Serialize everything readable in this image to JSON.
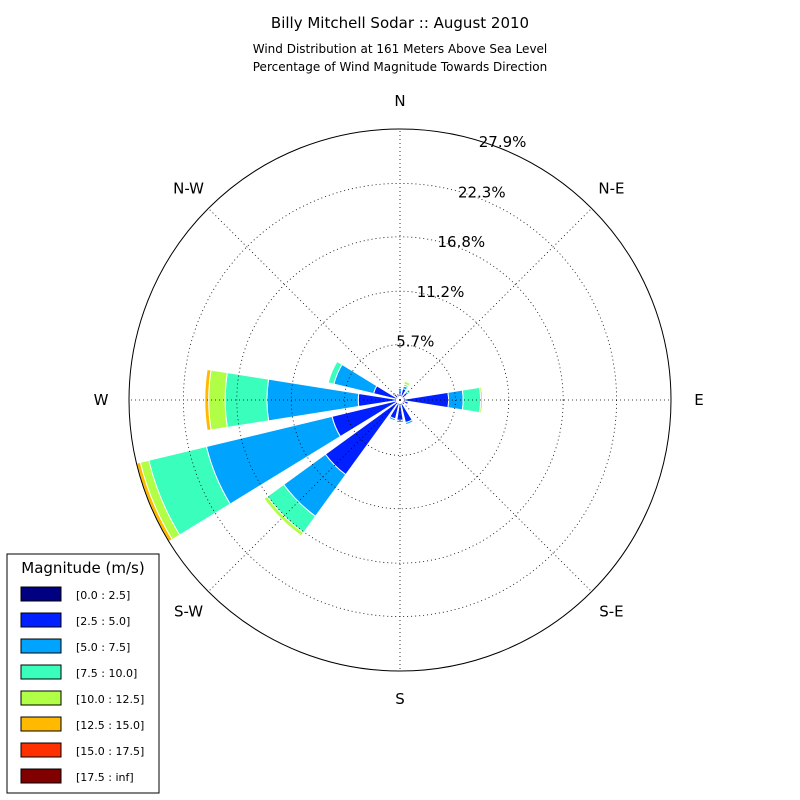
{
  "chart_data": {
    "type": "windrose",
    "title": "Billy Mitchell Sodar :: August 2010",
    "subtitle_lines": [
      "Wind Distribution at 161 Meters Above Sea Level",
      "Percentage of Wind Magnitude Towards Direction"
    ],
    "directions": [
      "N",
      "N-E",
      "E",
      "S-E",
      "S",
      "S-W",
      "W",
      "N-W"
    ],
    "ring_labels": [
      "5.7%",
      "11.2%",
      "16.8%",
      "22.3%",
      "27.9%"
    ],
    "rings": [
      5.7,
      11.2,
      16.8,
      22.3,
      27.9
    ],
    "rmax": 27.9,
    "legend": {
      "title": "Magnitude (m/s)",
      "entries": [
        "[0.0 : 2.5]",
        "[2.5 : 5.0]",
        "[5.0 : 7.5]",
        "[7.5 : 10.0]",
        "[10.0 : 12.5]",
        "[12.5 : 15.0]",
        "[15.0 : 17.5]",
        "[17.5 : inf]"
      ],
      "colors": [
        "#000080",
        "#0020ff",
        "#00a4ff",
        "#3affbc",
        "#b0ff46",
        "#ffba00",
        "#ff3000",
        "#800000"
      ]
    },
    "sectors": [
      {
        "dir_deg": 0,
        "cum": [
          0.3,
          0.9,
          1.2
        ]
      },
      {
        "dir_deg": 22.5,
        "cum": [
          0.3,
          1.2,
          1.5,
          1.7,
          2.0,
          2.1
        ]
      },
      {
        "dir_deg": 45,
        "cum": [
          0.3,
          0.9,
          1.1,
          1.3
        ]
      },
      {
        "dir_deg": 67.5,
        "cum": [
          0.3,
          0.6,
          0.7,
          0.8
        ]
      },
      {
        "dir_deg": 90,
        "cum": [
          0.3,
          5.0,
          6.5,
          8.3,
          8.5
        ]
      },
      {
        "dir_deg": 112.5,
        "cum": [
          0.3,
          0.9,
          1.0
        ]
      },
      {
        "dir_deg": 135,
        "cum": [
          0.3,
          0.6,
          0.7
        ]
      },
      {
        "dir_deg": 157.5,
        "cum": [
          0.3,
          2.4,
          2.6
        ]
      },
      {
        "dir_deg": 180,
        "cum": [
          0.3,
          2.1,
          2.3
        ]
      },
      {
        "dir_deg": 202.5,
        "cum": [
          0.3,
          2.0,
          2.2
        ]
      },
      {
        "dir_deg": 225,
        "cum": [
          0.4,
          9.5,
          14.8,
          16.9,
          17.3
        ]
      },
      {
        "dir_deg": 247.5,
        "cum": [
          0.4,
          7.2,
          20.5,
          26.6,
          27.5,
          27.9
        ]
      },
      {
        "dir_deg": 270,
        "cum": [
          0.4,
          4.3,
          13.7,
          18.0,
          19.7,
          20.1
        ]
      },
      {
        "dir_deg": 292.5,
        "cum": [
          0.3,
          2.8,
          7.0,
          7.6
        ]
      },
      {
        "dir_deg": 315,
        "cum": [
          0.3,
          0.8,
          1.0
        ]
      },
      {
        "dir_deg": 337.5,
        "cum": [
          0.3,
          0.7,
          0.8
        ]
      }
    ]
  }
}
